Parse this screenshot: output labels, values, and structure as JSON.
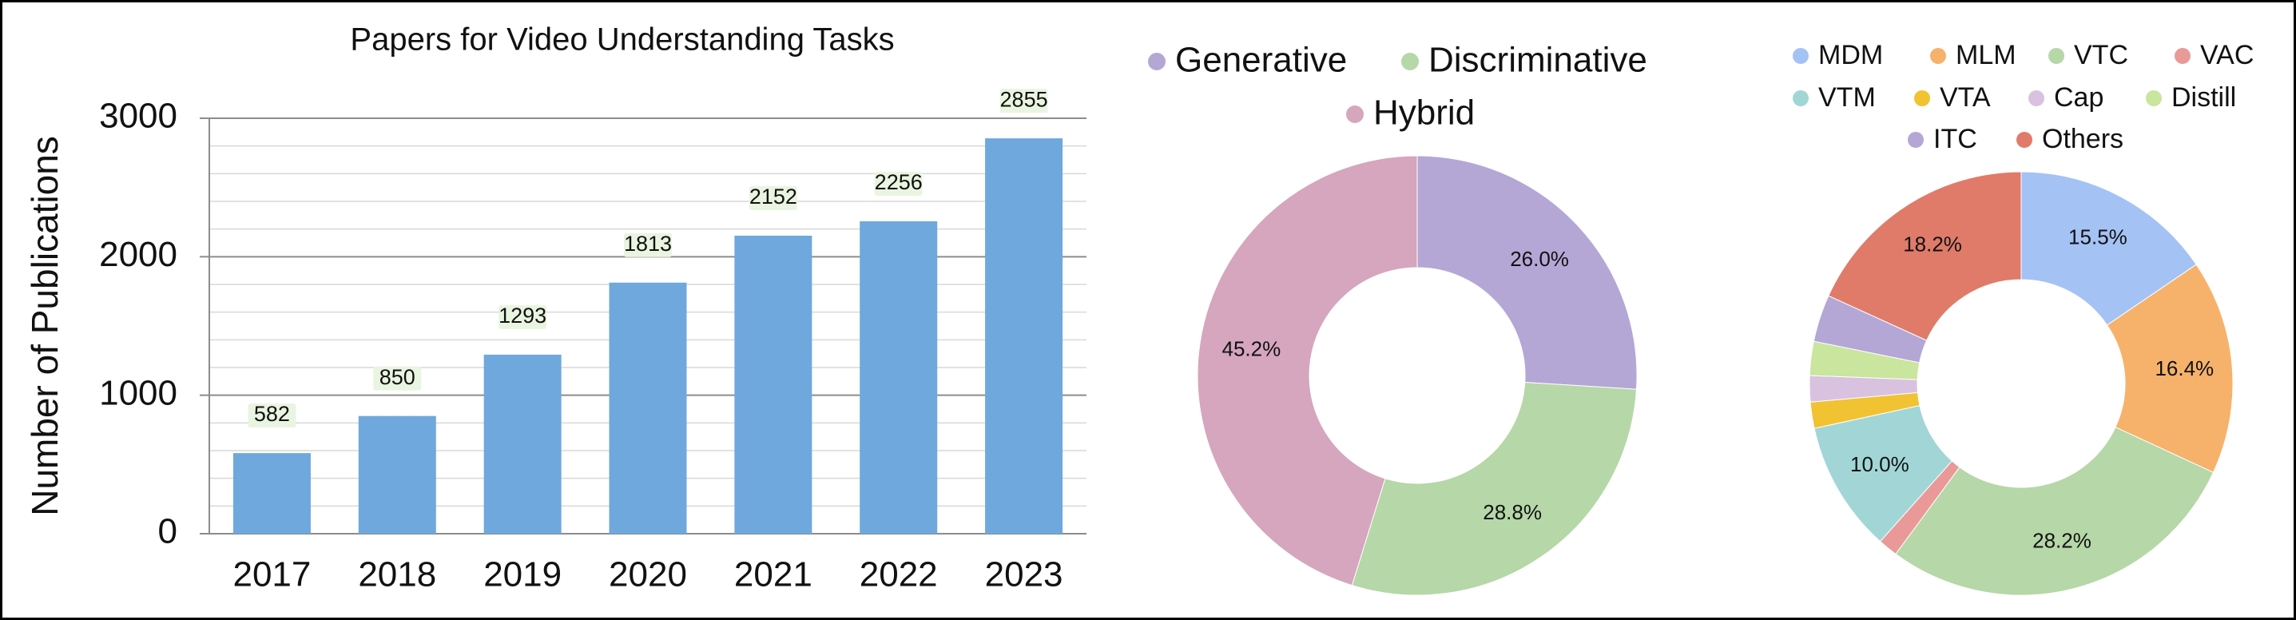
{
  "chart_data": [
    {
      "type": "bar",
      "title": "Papers for Video Understanding Tasks",
      "xlabel": "",
      "ylabel": "Number of Publications",
      "ylim": [
        0,
        3000
      ],
      "yticks": [
        0,
        1000,
        2000,
        3000
      ],
      "categories": [
        "2017",
        "2018",
        "2019",
        "2020",
        "2021",
        "2022",
        "2023"
      ],
      "values": [
        582,
        850,
        1293,
        1813,
        2152,
        2256,
        2855
      ],
      "data_labels": [
        "582",
        "850",
        "1293",
        "1813",
        "2152",
        "2256",
        "2855"
      ],
      "grid": true,
      "bar_color": "#6fa8dc",
      "label_bg": "#eaf5e1"
    },
    {
      "type": "pie",
      "donut": true,
      "legend": [
        {
          "name": "Generative",
          "color": "#b4a7d6"
        },
        {
          "name": "Discriminative",
          "color": "#b6d7a8"
        },
        {
          "name": "Hybrid",
          "color": "#d5a6bd"
        }
      ],
      "slices": [
        {
          "name": "Generative",
          "value": 26.0,
          "label": "26.0%",
          "color": "#b4a7d6"
        },
        {
          "name": "Discriminative",
          "value": 28.8,
          "label": "28.8%",
          "color": "#b6d7a8"
        },
        {
          "name": "Hybrid",
          "value": 45.2,
          "label": "45.2%",
          "color": "#d5a6bd"
        }
      ]
    },
    {
      "type": "pie",
      "donut": true,
      "legend": [
        {
          "name": "MDM",
          "color": "#a4c2f4"
        },
        {
          "name": "MLM",
          "color": "#f6b26b"
        },
        {
          "name": "VTC",
          "color": "#b6d7a8"
        },
        {
          "name": "VAC",
          "color": "#ea9999"
        },
        {
          "name": "VTM",
          "color": "#a2d6d6"
        },
        {
          "name": "VTA",
          "color": "#f1c232"
        },
        {
          "name": "Cap",
          "color": "#d9c2e0"
        },
        {
          "name": "Distill",
          "color": "#c9e59e"
        },
        {
          "name": "ITC",
          "color": "#b4a7d6"
        },
        {
          "name": "Others",
          "color": "#e07b6a"
        }
      ],
      "slices": [
        {
          "name": "MDM",
          "value": 15.5,
          "label": "15.5%",
          "color": "#a4c2f4"
        },
        {
          "name": "MLM",
          "value": 16.4,
          "label": "16.4%",
          "color": "#f6b26b"
        },
        {
          "name": "VTC",
          "value": 28.2,
          "label": "28.2%",
          "color": "#b6d7a8"
        },
        {
          "name": "VAC",
          "value": 1.5,
          "label": "",
          "color": "#ea9999"
        },
        {
          "name": "VTM",
          "value": 10.0,
          "label": "10.0%",
          "color": "#a2d6d6"
        },
        {
          "name": "VTA",
          "value": 2.0,
          "label": "",
          "color": "#f1c232"
        },
        {
          "name": "Cap",
          "value": 2.0,
          "label": "",
          "color": "#d9c2e0"
        },
        {
          "name": "Distill",
          "value": 2.6,
          "label": "",
          "color": "#c9e59e"
        },
        {
          "name": "ITC",
          "value": 3.6,
          "label": "",
          "color": "#b4a7d6"
        },
        {
          "name": "Others",
          "value": 18.2,
          "label": "18.2%",
          "color": "#e07b6a"
        }
      ]
    }
  ]
}
